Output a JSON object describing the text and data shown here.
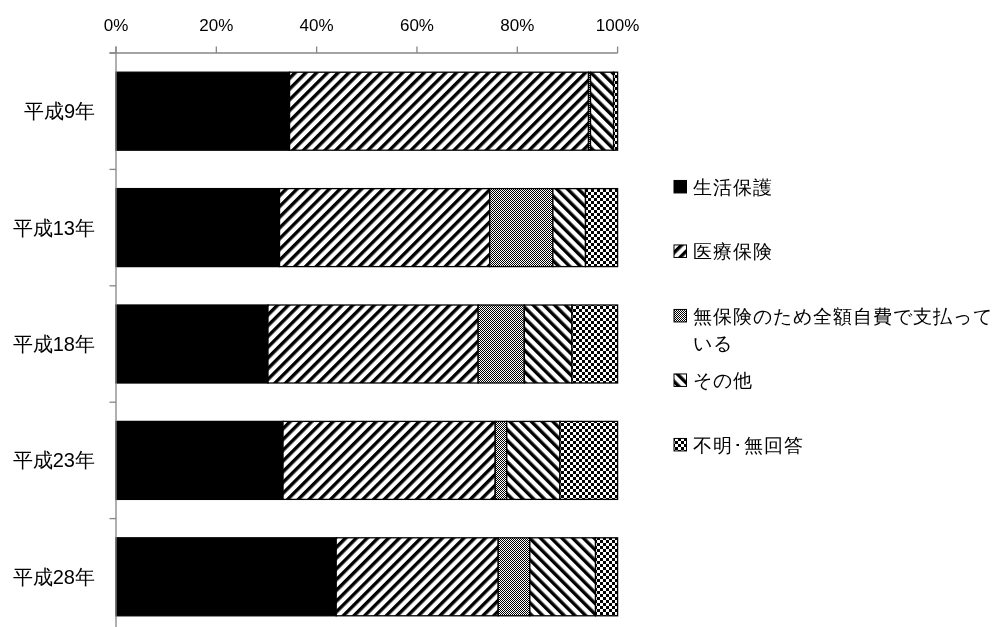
{
  "chart_data": {
    "type": "bar",
    "orientation": "horizontal",
    "stacked": true,
    "categories": [
      "平成9年",
      "平成13年",
      "平成18年",
      "平成23年",
      "平成28年"
    ],
    "series": [
      {
        "name": "生活保護",
        "color": "#000000",
        "values": [
          34.6,
          32.6,
          30.3,
          33.3,
          43.9
        ]
      },
      {
        "name": "医療保険",
        "color": "#000000",
        "values": [
          59.6,
          41.9,
          41.9,
          42.3,
          32.3
        ]
      },
      {
        "name": "無保険のため全額自費で支払っている",
        "color": "#000000",
        "values": [
          0.4,
          12.6,
          9.2,
          2.3,
          6.3
        ]
      },
      {
        "name": "その他",
        "color": "#000000",
        "values": [
          4.6,
          6.5,
          9.5,
          10.6,
          13.1
        ]
      },
      {
        "name": "不明･無回答",
        "color": "#000000",
        "values": [
          0.8,
          6.4,
          9.1,
          11.5,
          4.4
        ]
      }
    ],
    "xlim": [
      0,
      100
    ],
    "xticks": [
      {
        "value": 0,
        "label": "0%"
      },
      {
        "value": 20,
        "label": "20%"
      },
      {
        "value": 40,
        "label": "40%"
      },
      {
        "value": 60,
        "label": "60%"
      },
      {
        "value": 80,
        "label": "80%"
      },
      {
        "value": 100,
        "label": "100%"
      }
    ],
    "legend": "right"
  }
}
